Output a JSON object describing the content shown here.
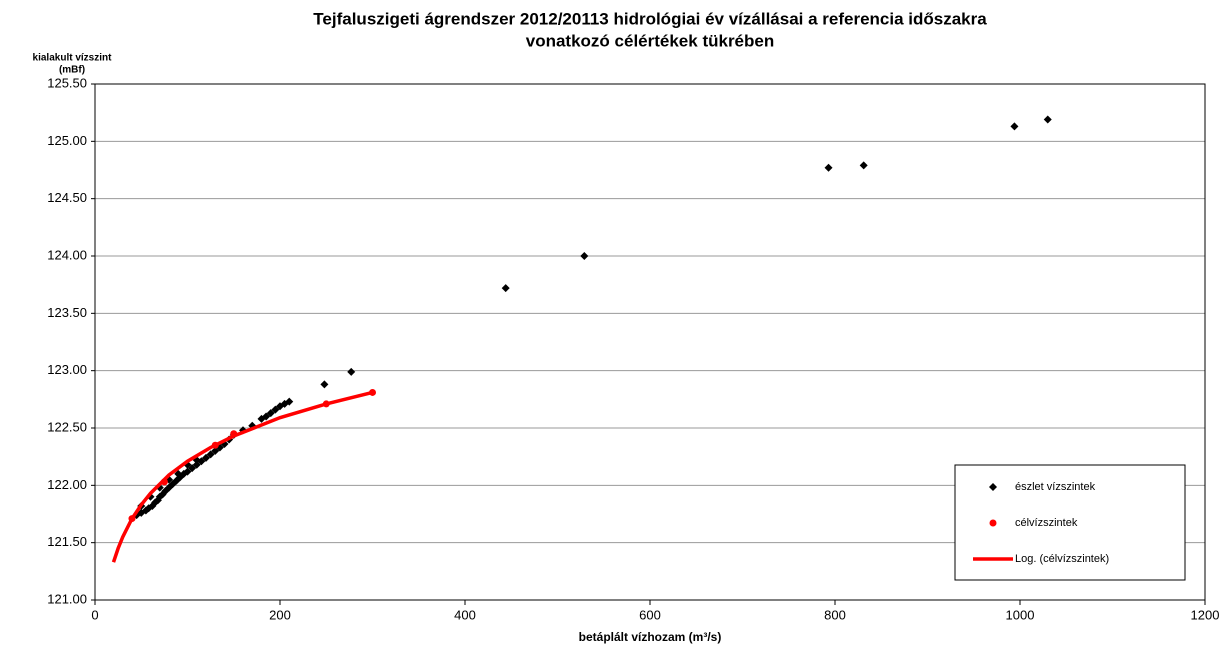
{
  "chart_data": {
    "type": "scatter",
    "title": [
      "Tejfaluszigeti ágrendszer 2012/20113 hidrológiai év vízállásai a referencia időszakra",
      "vonatkozó célértékek tükrében"
    ],
    "ylabel": [
      "kialakult vízszint",
      "(mBf)"
    ],
    "xlabel": "betáplált vízhozam (m³/s)",
    "xlim": [
      0,
      1200
    ],
    "xticks": [
      0,
      200,
      400,
      600,
      800,
      1000,
      1200
    ],
    "ylim": [
      121,
      125.5
    ],
    "yticks": [
      {
        "value": 121,
        "label": "121.00"
      },
      {
        "value": 121.5,
        "label": "121.50"
      },
      {
        "value": 122,
        "label": "122.00"
      },
      {
        "value": 122.5,
        "label": "122.50"
      },
      {
        "value": 123,
        "label": "123.00"
      },
      {
        "value": 123.5,
        "label": "123.50"
      },
      {
        "value": 124,
        "label": "124.00"
      },
      {
        "value": 124.5,
        "label": "124.50"
      },
      {
        "value": 125,
        "label": "125.00"
      },
      {
        "value": 125.5,
        "label": "125.50"
      }
    ],
    "grid": true,
    "legend": "bottom-right",
    "series": [
      {
        "name": "észlet vízszintek",
        "color": "#000000",
        "marker": "diamond",
        "x": [
          45,
          50,
          55,
          58,
          62,
          65,
          68,
          70,
          73,
          76,
          80,
          84,
          88,
          92,
          96,
          100,
          105,
          110,
          115,
          120,
          125,
          130,
          135,
          140,
          145,
          150,
          160,
          170,
          180,
          185,
          190,
          195,
          200,
          205,
          210,
          50,
          60,
          70,
          80,
          90,
          100,
          110,
          248,
          277,
          444,
          529,
          793,
          831,
          994,
          1030
        ],
        "values": [
          121.74,
          121.76,
          121.78,
          121.8,
          121.82,
          121.85,
          121.87,
          121.9,
          121.92,
          121.95,
          121.98,
          122.01,
          122.04,
          122.07,
          122.1,
          122.12,
          122.15,
          122.18,
          122.21,
          122.24,
          122.27,
          122.3,
          122.33,
          122.36,
          122.4,
          122.44,
          122.48,
          122.52,
          122.58,
          122.6,
          122.63,
          122.66,
          122.69,
          122.71,
          122.73,
          121.82,
          121.9,
          121.98,
          122.05,
          122.1,
          122.18,
          122.22,
          122.88,
          122.99,
          123.72,
          124,
          124.77,
          124.79,
          125.13,
          125.19
        ]
      },
      {
        "name": "célvízszintek",
        "color": "#ff0000",
        "marker": "circle",
        "x": [
          40,
          75,
          130,
          150,
          250,
          300
        ],
        "values": [
          121.71,
          122.03,
          122.35,
          122.45,
          122.71,
          122.81
        ]
      },
      {
        "name": "Log. (célvízszintek)",
        "color": "#ff0000",
        "marker": "line",
        "x": [
          20,
          25,
          30,
          40,
          50,
          60,
          80,
          100,
          125,
          150,
          200,
          250,
          300
        ],
        "values": [
          121.33,
          121.45,
          121.55,
          121.71,
          121.83,
          121.93,
          122.09,
          122.21,
          122.33,
          122.43,
          122.59,
          122.71,
          122.81
        ]
      }
    ]
  }
}
